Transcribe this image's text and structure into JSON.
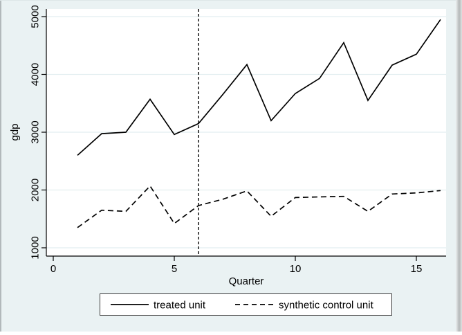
{
  "figure": {
    "background_color": "#eaf2f3",
    "plot_background_color": "#ffffff",
    "grid_color": "#e2eef0",
    "axis_color": "#000000",
    "series_color": "#000000",
    "legend_border_color": "#3a3a3a",
    "window_edge_left_color": "#b2b9bb",
    "window_edge_right_color": "#b9bdbe"
  },
  "chart_data": {
    "type": "line",
    "title": "",
    "xlabel": "Quarter",
    "ylabel": "gdp",
    "x_ticks": [
      0,
      5,
      10,
      15
    ],
    "y_ticks": [
      1000,
      2000,
      3000,
      4000,
      5000
    ],
    "xlim": [
      -0.3,
      16.25
    ],
    "ylim": [
      860,
      5130
    ],
    "grid": true,
    "treatment_line_x": 6,
    "x": [
      1,
      2,
      3,
      4,
      5,
      6,
      7,
      8,
      9,
      10,
      11,
      12,
      13,
      14,
      15,
      16
    ],
    "series": [
      {
        "name": "treated unit",
        "style": "solid",
        "values": [
          2600,
          2975,
          3000,
          3570,
          2960,
          3150,
          3650,
          4170,
          3200,
          3670,
          3930,
          4550,
          3550,
          4160,
          4350,
          4950
        ]
      },
      {
        "name": "synthetic control unit",
        "style": "dashed",
        "values": [
          1350,
          1650,
          1630,
          2070,
          1420,
          1730,
          1840,
          1985,
          1545,
          1870,
          1880,
          1890,
          1630,
          1930,
          1950,
          1990
        ]
      }
    ],
    "legend": {
      "position": "bottom",
      "entries": [
        "treated unit",
        "synthetic control unit"
      ]
    }
  }
}
